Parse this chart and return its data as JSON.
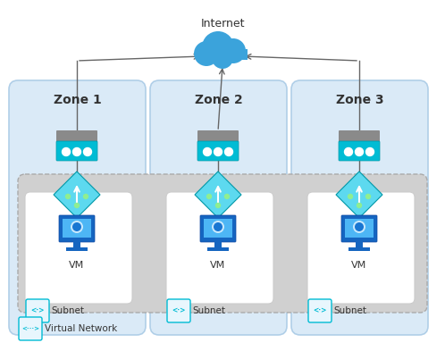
{
  "title": "Internet",
  "background": "#ffffff",
  "zone_labels": [
    "Zone 1",
    "Zone 2",
    "Zone 3"
  ],
  "zone_bg_color": "#daeaf7",
  "zone_border_color": "#b0cfe8",
  "vnet_bg_color": "#d0d0d0",
  "vnet_border_color": "#aaaaaa",
  "subnet_bg_color": "#ffffff",
  "subnet_border_color": "#cccccc",
  "arrow_color": "#666666",
  "lb_gray": "#8a8a8a",
  "lb_cyan": "#00bcd4",
  "router_cyan": "#00d4e8",
  "router_border": "#0097a7",
  "vm_dark": "#1565c0",
  "vm_screen": "#4db6f5",
  "subnet_icon_bg": "#e8f6fd",
  "subnet_icon_border": "#00bcd4",
  "subnet_icon_color": "#00bcd4",
  "vnet_icon_bg": "#e8f6fd",
  "vnet_icon_border": "#00bcd4",
  "cloud_blue": "#3ba3db",
  "text_dark": "#333333"
}
